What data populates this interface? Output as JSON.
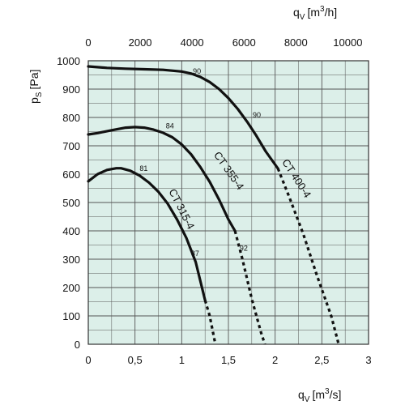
{
  "chart_data": {
    "type": "line",
    "grid": true,
    "colors": {
      "background": "#dcefe9",
      "grid": "#555555",
      "curve": "#111111"
    },
    "x": {
      "title_main": "q",
      "title_sub": "V",
      "title_unit": "[m",
      "title_sup": "3",
      "title_end": "/s]",
      "range": [
        0,
        3
      ],
      "ticks": [
        0,
        0.5,
        1,
        1.5,
        2,
        2.5,
        3
      ],
      "tick_labels": [
        "0",
        "0,5",
        "1",
        "1,5",
        "2",
        "2,5",
        "3"
      ]
    },
    "x_top": {
      "title_main": "q",
      "title_sub": "V",
      "title_unit": "[m",
      "title_sup": "3",
      "title_end": "/h]",
      "range": [
        0,
        10800
      ],
      "ticks": [
        0,
        2000,
        4000,
        6000,
        8000,
        10000
      ],
      "tick_labels": [
        "0",
        "2000",
        "4000",
        "6000",
        "8000",
        "10000"
      ]
    },
    "y": {
      "title_main": "p",
      "title_sub": "S",
      "title_unit": "[Pa]",
      "range": [
        0,
        1000
      ],
      "ticks": [
        0,
        100,
        200,
        300,
        400,
        500,
        600,
        700,
        800,
        900,
        1000
      ],
      "tick_labels": [
        "0",
        "100",
        "200",
        "300",
        "400",
        "500",
        "600",
        "700",
        "800",
        "900",
        "1000"
      ]
    },
    "series": [
      {
        "name": "CT 315-4",
        "solid": [
          [
            0,
            575
          ],
          [
            0.1,
            600
          ],
          [
            0.2,
            615
          ],
          [
            0.3,
            621
          ],
          [
            0.35,
            621
          ],
          [
            0.45,
            612
          ],
          [
            0.55,
            595
          ],
          [
            0.65,
            570
          ],
          [
            0.75,
            538
          ],
          [
            0.85,
            496
          ],
          [
            0.95,
            440
          ],
          [
            1.05,
            375
          ],
          [
            1.15,
            290
          ],
          [
            1.25,
            155
          ]
        ],
        "dashed": [
          [
            1.25,
            155
          ],
          [
            1.3,
            100
          ],
          [
            1.36,
            0
          ]
        ],
        "efficiency_labels": [
          {
            "x": 0.55,
            "y": 612,
            "text": "81"
          },
          {
            "x": 1.1,
            "y": 312,
            "text": "87"
          }
        ]
      },
      {
        "name": "CT 355-4",
        "solid": [
          [
            0,
            740
          ],
          [
            0.1,
            745
          ],
          [
            0.25,
            755
          ],
          [
            0.4,
            764
          ],
          [
            0.5,
            766
          ],
          [
            0.6,
            764
          ],
          [
            0.7,
            757
          ],
          [
            0.8,
            746
          ],
          [
            0.9,
            730
          ],
          [
            1.0,
            705
          ],
          [
            1.1,
            670
          ],
          [
            1.2,
            625
          ],
          [
            1.3,
            573
          ],
          [
            1.4,
            510
          ],
          [
            1.5,
            440
          ],
          [
            1.57,
            400
          ]
        ],
        "dashed": [
          [
            1.57,
            400
          ],
          [
            1.65,
            300
          ],
          [
            1.75,
            160
          ],
          [
            1.85,
            40
          ],
          [
            1.89,
            0
          ]
        ],
        "efficiency_labels": [
          {
            "x": 0.83,
            "y": 762,
            "text": "84"
          },
          {
            "x": 1.62,
            "y": 330,
            "text": "92"
          }
        ]
      },
      {
        "name": "CT 400-4",
        "solid": [
          [
            0,
            980
          ],
          [
            0.2,
            975
          ],
          [
            0.4,
            972
          ],
          [
            0.6,
            970
          ],
          [
            0.8,
            968
          ],
          [
            1.0,
            962
          ],
          [
            1.1,
            955
          ],
          [
            1.2,
            943
          ],
          [
            1.3,
            925
          ],
          [
            1.4,
            900
          ],
          [
            1.5,
            868
          ],
          [
            1.6,
            830
          ],
          [
            1.7,
            785
          ],
          [
            1.8,
            735
          ],
          [
            1.9,
            680
          ],
          [
            2.03,
            620
          ]
        ],
        "dashed": [
          [
            2.03,
            620
          ],
          [
            2.15,
            520
          ],
          [
            2.3,
            390
          ],
          [
            2.45,
            240
          ],
          [
            2.6,
            100
          ],
          [
            2.68,
            0
          ]
        ],
        "efficiency_labels": [
          {
            "x": 1.12,
            "y": 955,
            "text": "90"
          },
          {
            "x": 1.76,
            "y": 800,
            "text": "90"
          }
        ]
      }
    ]
  }
}
